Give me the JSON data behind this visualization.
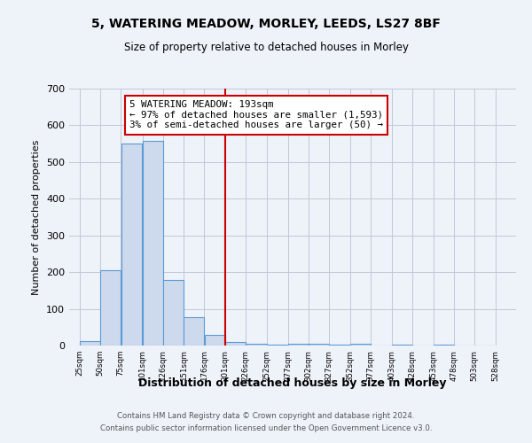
{
  "title": "5, WATERING MEADOW, MORLEY, LEEDS, LS27 8BF",
  "subtitle": "Size of property relative to detached houses in Morley",
  "xlabel": "Distribution of detached houses by size in Morley",
  "ylabel": "Number of detached properties",
  "bar_left_edges": [
    25,
    50,
    75,
    101,
    126,
    151,
    176,
    201,
    226,
    252,
    277,
    302,
    327,
    352,
    377,
    403,
    428,
    453,
    478,
    503
  ],
  "bar_widths": [
    25,
    25,
    26,
    25,
    25,
    25,
    25,
    25,
    26,
    25,
    25,
    25,
    25,
    25,
    26,
    25,
    25,
    25,
    25,
    25
  ],
  "bar_heights": [
    11,
    204,
    551,
    558,
    178,
    78,
    30,
    10,
    5,
    3,
    5,
    4,
    3,
    4,
    0,
    3,
    0,
    3,
    0,
    0
  ],
  "bar_facecolor": "#cdd9ed",
  "bar_edgecolor": "#5b9bd5",
  "vline_x": 201,
  "vline_color": "#cc0000",
  "annotation_text": "5 WATERING MEADOW: 193sqm\n← 97% of detached houses are smaller (1,593)\n3% of semi-detached houses are larger (50) →",
  "annotation_box_edgecolor": "#cc0000",
  "annotation_box_facecolor": "#ffffff",
  "ylim": [
    0,
    700
  ],
  "yticks": [
    0,
    100,
    200,
    300,
    400,
    500,
    600,
    700
  ],
  "tick_labels": [
    "25sqm",
    "50sqm",
    "75sqm",
    "101sqm",
    "126sqm",
    "151sqm",
    "176sqm",
    "201sqm",
    "226sqm",
    "252sqm",
    "277sqm",
    "302sqm",
    "327sqm",
    "352sqm",
    "377sqm",
    "403sqm",
    "428sqm",
    "453sqm",
    "478sqm",
    "503sqm",
    "528sqm"
  ],
  "footer_line1": "Contains HM Land Registry data © Crown copyright and database right 2024.",
  "footer_line2": "Contains public sector information licensed under the Open Government Licence v3.0.",
  "bg_color": "#eef2f9",
  "plot_bg_color": "#eef2f9",
  "grid_color": "#c0c8d8"
}
